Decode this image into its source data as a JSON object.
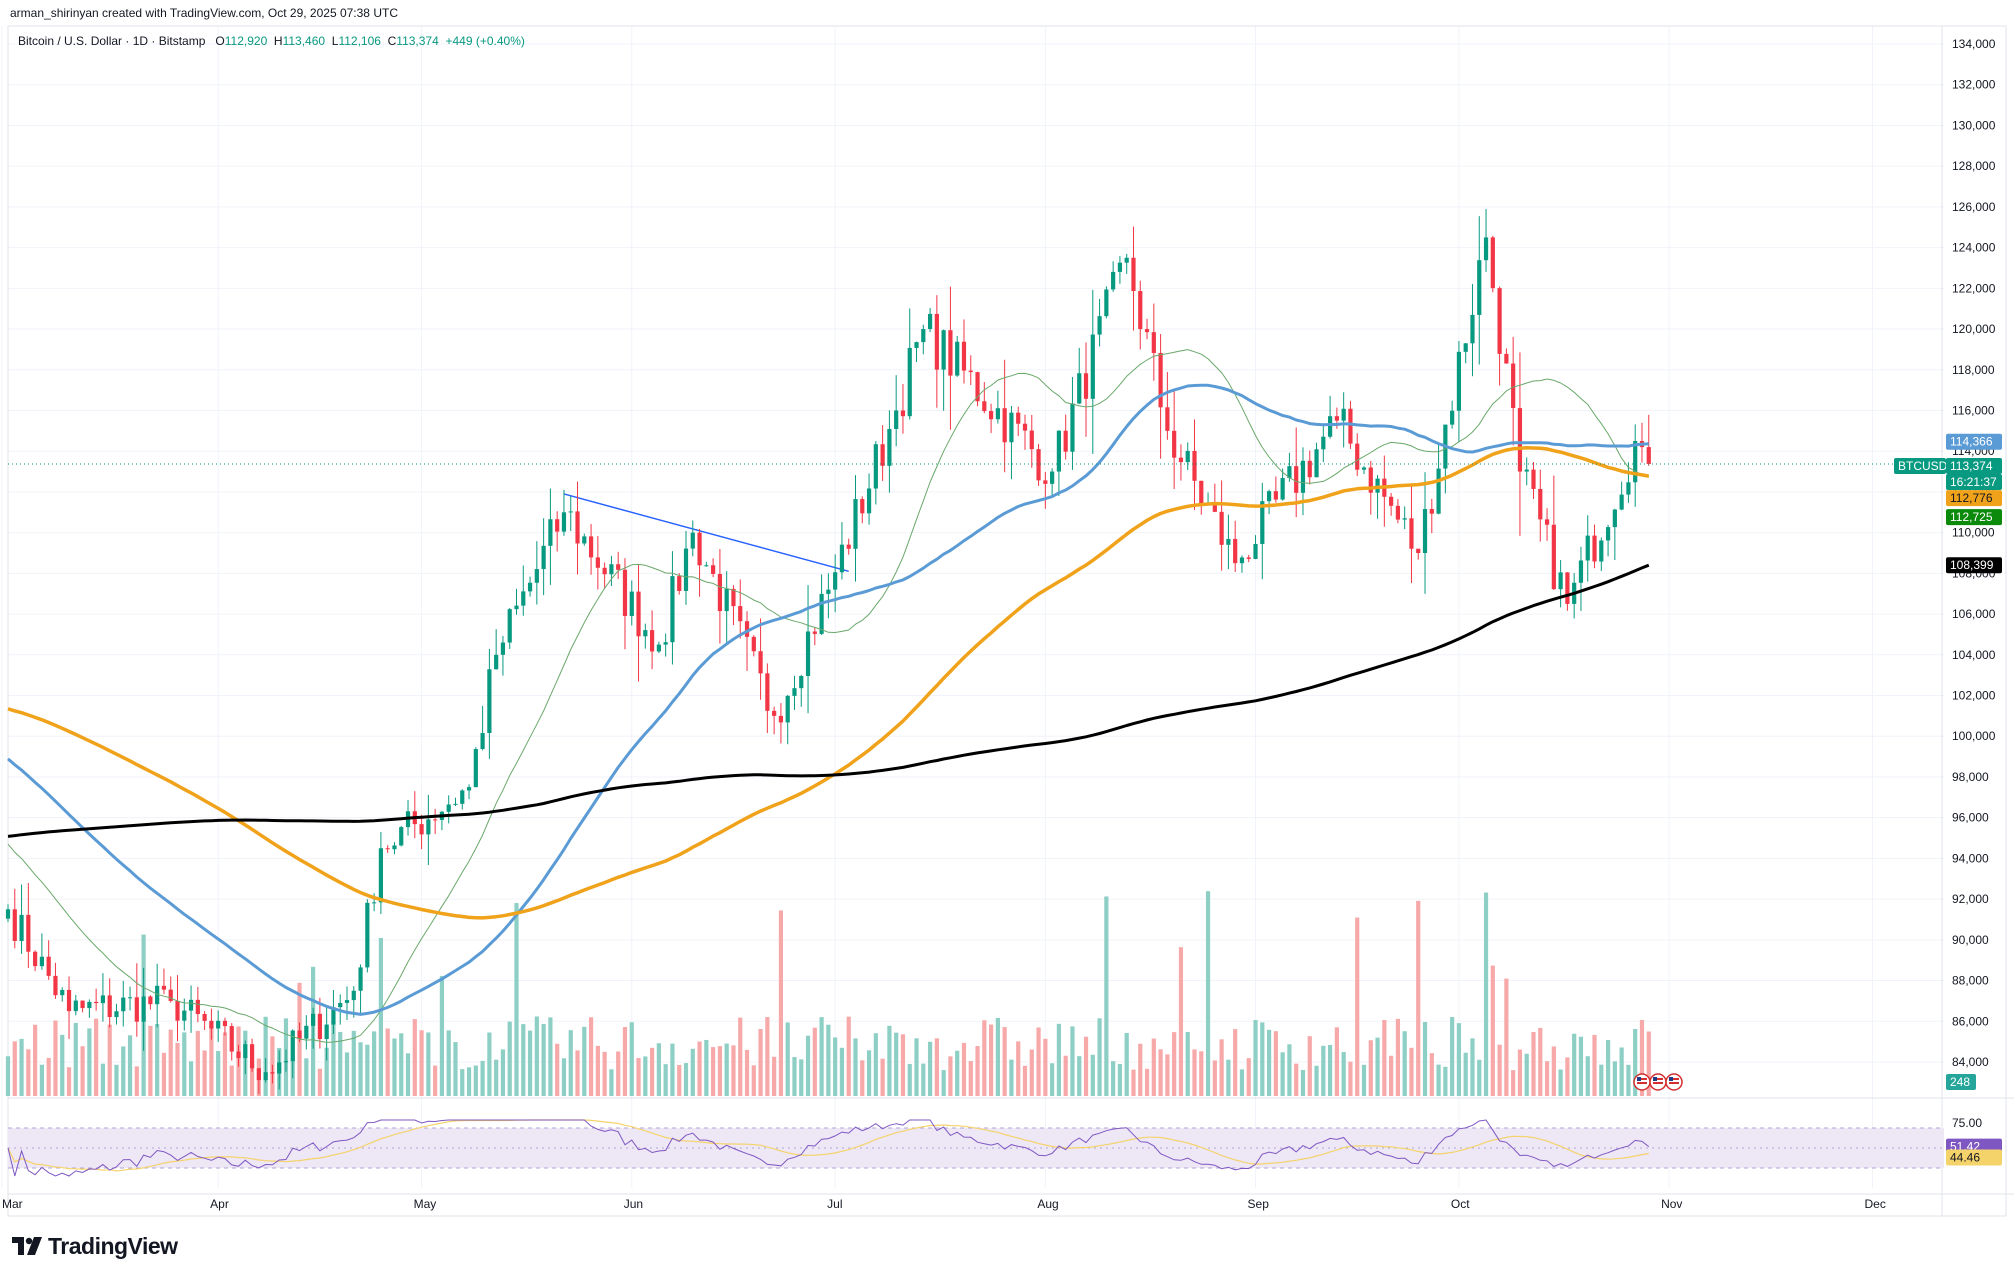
{
  "credit": "arman_shirinyan created with TradingView.com, Oct 29, 2025 07:38 UTC",
  "legend": {
    "symbol": "Bitcoin / U.S. Dollar · 1D · Bitstamp",
    "o_label": "O",
    "o": "112,920",
    "h_label": "H",
    "h": "113,460",
    "l_label": "L",
    "l": "112,106",
    "c_label": "C",
    "c": "113,374",
    "change": "+449 (+0.40%)"
  },
  "brand": "TradingView",
  "colors": {
    "up": "#089981",
    "down": "#f23645",
    "vol_up": "#8dcfc4",
    "vol_down": "#f7a9a9",
    "ma_blue": "#5b9bd5",
    "ma_orange": "#f0a21a",
    "ma_black": "#000000",
    "ma_thin": "#6aa86a",
    "rsi": "#7e57c2",
    "rsi_ma": "#f5d36b",
    "rsi_band": "#ede7f6",
    "trendline": "#2962ff"
  },
  "chart_data": {
    "type": "candlestick",
    "symbol": "BTCUSD",
    "timeframe": "1D",
    "price_axis": {
      "range": [
        82000,
        134500
      ],
      "ticks": [
        "134,000",
        "132,000",
        "130,000",
        "128,000",
        "126,000",
        "124,000",
        "122,000",
        "120,000",
        "118,000",
        "116,000",
        "114,000",
        "112,000",
        "110,000",
        "108,000",
        "106,000",
        "104,000",
        "102,000",
        "100,000",
        "98,000",
        "96,000",
        "94,000",
        "92,000",
        "90,000",
        "88,000",
        "86,000",
        "84,000"
      ]
    },
    "months": [
      "Mar",
      "Apr",
      "May",
      "Jun",
      "Jul",
      "Aug",
      "Sep",
      "Oct",
      "Nov",
      "Dec"
    ],
    "price_tags": [
      {
        "label": "114,366",
        "value": 114366,
        "series": "SMA 50 (blue)"
      },
      {
        "label": "BTCUSD",
        "value": 113374,
        "series": "symbol"
      },
      {
        "label": "113,374",
        "value": 113374,
        "series": "last price"
      },
      {
        "label": "16:21:37",
        "value": 113374,
        "series": "countdown"
      },
      {
        "label": "112,776",
        "value": 112776,
        "series": "SMA 100 (orange)"
      },
      {
        "label": "112,725",
        "value": 112725,
        "series": "SMA 20 (green)"
      },
      {
        "label": "108,399",
        "value": 108399,
        "series": "SMA 200 (black)"
      },
      {
        "label": "248",
        "value": 248,
        "series": "volume"
      }
    ],
    "ohlc_anchor_points": [
      {
        "date": "2025-03-01",
        "close": 91500
      },
      {
        "date": "2025-03-10",
        "close": 86500
      },
      {
        "date": "2025-03-25",
        "close": 87000
      },
      {
        "date": "2025-04-08",
        "close": 83500
      },
      {
        "date": "2025-04-21",
        "close": 87500
      },
      {
        "date": "2025-04-25",
        "close": 94500
      },
      {
        "date": "2025-05-08",
        "close": 97500
      },
      {
        "date": "2025-05-12",
        "close": 104000
      },
      {
        "date": "2025-05-22",
        "close": 111000
      },
      {
        "date": "2025-06-05",
        "close": 104500
      },
      {
        "date": "2025-06-10",
        "close": 110000
      },
      {
        "date": "2025-06-22",
        "close": 101000
      },
      {
        "date": "2025-06-30",
        "close": 107200
      },
      {
        "date": "2025-07-10",
        "close": 116000
      },
      {
        "date": "2025-07-14",
        "close": 120000
      },
      {
        "date": "2025-08-02",
        "close": 113000
      },
      {
        "date": "2025-08-13",
        "close": 123500
      },
      {
        "date": "2025-08-19",
        "close": 115000
      },
      {
        "date": "2025-08-29",
        "close": 108500
      },
      {
        "date": "2025-09-13",
        "close": 115500
      },
      {
        "date": "2025-09-25",
        "close": 109000
      },
      {
        "date": "2025-10-05",
        "close": 124500
      },
      {
        "date": "2025-10-10",
        "close": 113000
      },
      {
        "date": "2025-10-17",
        "close": 106500
      },
      {
        "date": "2025-10-27",
        "close": 114500
      },
      {
        "date": "2025-10-29",
        "close": 113374
      }
    ],
    "moving_averages": [
      {
        "name": "SMA 20",
        "color": "green (thin)",
        "last": 112725
      },
      {
        "name": "SMA 50",
        "color": "blue",
        "last": 114366
      },
      {
        "name": "SMA 100",
        "color": "orange",
        "last": 112776
      },
      {
        "name": "SMA 200",
        "color": "black",
        "last": 108399
      }
    ],
    "trendline": {
      "from": {
        "date": "2025-05-22",
        "price": 111900
      },
      "to": {
        "date": "2025-07-03",
        "price": 108100
      }
    },
    "rsi": {
      "ticks": [
        "75.00"
      ],
      "last": "51.42",
      "ma_last": "44.46",
      "band": [
        30,
        70
      ]
    }
  }
}
